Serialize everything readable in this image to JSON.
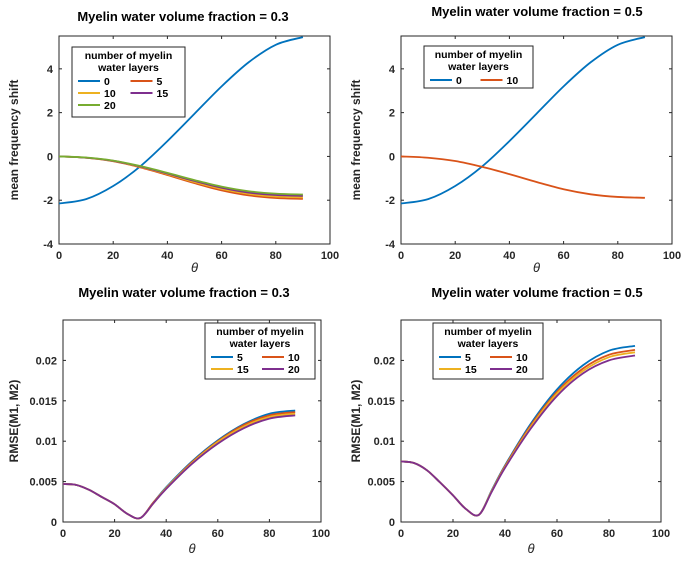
{
  "chart_data": [
    {
      "type": "line",
      "title": "Myelin water volume fraction = 0.3",
      "xlabel": "θ",
      "ylabel": "mean frequency shift",
      "xlim": [
        0,
        100
      ],
      "ylim": [
        -4,
        5.5
      ],
      "xticks": [
        "0",
        "20",
        "40",
        "60",
        "80",
        "100"
      ],
      "yticks": [
        "-4",
        "-2",
        "0",
        "2",
        "4"
      ],
      "legend_title": "number of myelin water layers",
      "legend_columns": 2,
      "legend_placement": "top-left",
      "series": [
        {
          "name": "0",
          "color": "#0072BD",
          "x": [
            0,
            10,
            20,
            30,
            40,
            50,
            60,
            70,
            80,
            90
          ],
          "y": [
            -2.15,
            -1.95,
            -1.35,
            -0.45,
            0.7,
            1.95,
            3.2,
            4.3,
            5.1,
            5.45
          ]
        },
        {
          "name": "5",
          "color": "#D95319",
          "x": [
            0,
            10,
            20,
            30,
            40,
            50,
            60,
            70,
            80,
            90
          ],
          "y": [
            0,
            -0.06,
            -0.22,
            -0.5,
            -0.85,
            -1.22,
            -1.55,
            -1.78,
            -1.9,
            -1.94
          ]
        },
        {
          "name": "10",
          "color": "#EDB120",
          "x": [
            0,
            10,
            20,
            30,
            40,
            50,
            60,
            70,
            80,
            90
          ],
          "y": [
            0,
            -0.06,
            -0.21,
            -0.48,
            -0.81,
            -1.17,
            -1.49,
            -1.71,
            -1.83,
            -1.87
          ]
        },
        {
          "name": "15",
          "color": "#7E2F8E",
          "x": [
            0,
            10,
            20,
            30,
            40,
            50,
            60,
            70,
            80,
            90
          ],
          "y": [
            0,
            -0.06,
            -0.2,
            -0.46,
            -0.78,
            -1.12,
            -1.43,
            -1.65,
            -1.76,
            -1.8
          ]
        },
        {
          "name": "20",
          "color": "#77AC30",
          "x": [
            0,
            10,
            20,
            30,
            40,
            50,
            60,
            70,
            80,
            90
          ],
          "y": [
            0,
            -0.05,
            -0.19,
            -0.44,
            -0.75,
            -1.08,
            -1.38,
            -1.59,
            -1.7,
            -1.74
          ]
        }
      ]
    },
    {
      "type": "line",
      "title": "Myelin water volume fraction = 0.5",
      "xlabel": "θ",
      "ylabel": "mean frequency shift",
      "xlim": [
        0,
        100
      ],
      "ylim": [
        -4,
        5.5
      ],
      "xticks": [
        "0",
        "20",
        "40",
        "60",
        "80",
        "100"
      ],
      "yticks": [
        "-4",
        "-2",
        "0",
        "2",
        "4"
      ],
      "legend_title": "number of myelin water layers",
      "legend_columns": 2,
      "legend_placement": "top-left",
      "series": [
        {
          "name": "0",
          "color": "#0072BD",
          "x": [
            0,
            10,
            20,
            30,
            40,
            50,
            60,
            70,
            80,
            90
          ],
          "y": [
            -2.15,
            -1.95,
            -1.35,
            -0.45,
            0.7,
            1.95,
            3.2,
            4.3,
            5.1,
            5.45
          ]
        },
        {
          "name": "10",
          "color": "#D95319",
          "x": [
            0,
            10,
            20,
            30,
            40,
            50,
            60,
            70,
            80,
            90
          ],
          "y": [
            0,
            -0.06,
            -0.21,
            -0.48,
            -0.81,
            -1.17,
            -1.5,
            -1.73,
            -1.85,
            -1.89
          ]
        }
      ]
    },
    {
      "type": "line",
      "title": "Myelin water volume fraction = 0.3",
      "xlabel": "θ",
      "ylabel": "RMSE(M1, M2)",
      "xlim": [
        0,
        100
      ],
      "ylim": [
        0,
        0.025
      ],
      "xticks": [
        "0",
        "20",
        "40",
        "60",
        "80",
        "100"
      ],
      "yticks": [
        "0",
        "0.005",
        "0.01",
        "0.015",
        "0.02"
      ],
      "legend_title": "number of myelin water layers",
      "legend_columns": 2,
      "legend_placement": "top-right",
      "series": [
        {
          "name": "5",
          "color": "#0072BD",
          "x": [
            0,
            5,
            10,
            15,
            20,
            25,
            30,
            35,
            40,
            50,
            60,
            70,
            80,
            90
          ],
          "y": [
            0.0047,
            0.0046,
            0.004,
            0.0031,
            0.0022,
            0.001,
            0.0005,
            0.0024,
            0.0043,
            0.0075,
            0.0101,
            0.0121,
            0.0134,
            0.0138
          ]
        },
        {
          "name": "10",
          "color": "#D95319",
          "x": [
            0,
            5,
            10,
            15,
            20,
            25,
            30,
            35,
            40,
            50,
            60,
            70,
            80,
            90
          ],
          "y": [
            0.0047,
            0.0046,
            0.004,
            0.0031,
            0.0022,
            0.001,
            0.0005,
            0.0024,
            0.0042,
            0.0074,
            0.01,
            0.012,
            0.0132,
            0.0136
          ]
        },
        {
          "name": "15",
          "color": "#EDB120",
          "x": [
            0,
            5,
            10,
            15,
            20,
            25,
            30,
            35,
            40,
            50,
            60,
            70,
            80,
            90
          ],
          "y": [
            0.0047,
            0.0046,
            0.004,
            0.0031,
            0.0022,
            0.001,
            0.0005,
            0.0023,
            0.0042,
            0.0073,
            0.0099,
            0.0118,
            0.013,
            0.0134
          ]
        },
        {
          "name": "20",
          "color": "#7E2F8E",
          "x": [
            0,
            5,
            10,
            15,
            20,
            25,
            30,
            35,
            40,
            50,
            60,
            70,
            80,
            90
          ],
          "y": [
            0.0047,
            0.0046,
            0.004,
            0.0031,
            0.0022,
            0.001,
            0.0005,
            0.0023,
            0.0041,
            0.0072,
            0.0097,
            0.0116,
            0.0128,
            0.0132
          ]
        }
      ]
    },
    {
      "type": "line",
      "title": "Myelin water volume fraction = 0.5",
      "xlabel": "θ",
      "ylabel": "RMSE(M1, M2)",
      "xlim": [
        0,
        100
      ],
      "ylim": [
        0,
        0.025
      ],
      "xticks": [
        "0",
        "20",
        "40",
        "60",
        "80",
        "100"
      ],
      "yticks": [
        "0",
        "0.005",
        "0.01",
        "0.015",
        "0.02"
      ],
      "legend_title": "number of myelin water layers",
      "legend_columns": 2,
      "legend_placement": "top-left",
      "series": [
        {
          "name": "5",
          "color": "#0072BD",
          "x": [
            0,
            5,
            10,
            15,
            20,
            25,
            30,
            35,
            40,
            50,
            60,
            70,
            80,
            90
          ],
          "y": [
            0.0075,
            0.0073,
            0.0064,
            0.0049,
            0.0033,
            0.0016,
            0.0009,
            0.004,
            0.007,
            0.0122,
            0.0164,
            0.0194,
            0.0212,
            0.0218
          ]
        },
        {
          "name": "10",
          "color": "#D95319",
          "x": [
            0,
            5,
            10,
            15,
            20,
            25,
            30,
            35,
            40,
            50,
            60,
            70,
            80,
            90
          ],
          "y": [
            0.0075,
            0.0073,
            0.0064,
            0.0049,
            0.0033,
            0.0016,
            0.0009,
            0.0039,
            0.0069,
            0.012,
            0.0161,
            0.019,
            0.0207,
            0.0213
          ]
        },
        {
          "name": "15",
          "color": "#EDB120",
          "x": [
            0,
            5,
            10,
            15,
            20,
            25,
            30,
            35,
            40,
            50,
            60,
            70,
            80,
            90
          ],
          "y": [
            0.0075,
            0.0073,
            0.0064,
            0.0049,
            0.0033,
            0.0016,
            0.0009,
            0.0039,
            0.0068,
            0.0118,
            0.0159,
            0.0187,
            0.0204,
            0.021
          ]
        },
        {
          "name": "20",
          "color": "#7E2F8E",
          "x": [
            0,
            5,
            10,
            15,
            20,
            25,
            30,
            35,
            40,
            50,
            60,
            70,
            80,
            90
          ],
          "y": [
            0.0075,
            0.0073,
            0.0064,
            0.0049,
            0.0033,
            0.0016,
            0.0009,
            0.0038,
            0.0067,
            0.0116,
            0.0156,
            0.0184,
            0.02,
            0.0206
          ]
        }
      ]
    }
  ]
}
